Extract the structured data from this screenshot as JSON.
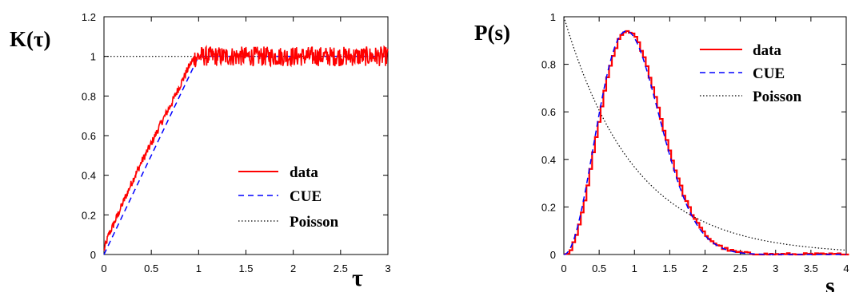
{
  "chart_data": [
    {
      "type": "line",
      "ylabel": "K(τ)",
      "xlabel": "τ",
      "xlim": [
        0,
        3
      ],
      "ylim": [
        0,
        1.2
      ],
      "xticks": [
        "0",
        "0.5",
        "1",
        "1.5",
        "2",
        "2.5",
        "3"
      ],
      "yticks": [
        "0",
        "0.2",
        "0.4",
        "0.6",
        "0.8",
        "1",
        "1.2"
      ],
      "grid": false,
      "legend_position": "bottom-right",
      "series": [
        {
          "name": "data",
          "color": "#ff0000",
          "style": "solid",
          "x": [
            0,
            0.05,
            0.1,
            0.2,
            0.3,
            0.4,
            0.5,
            0.6,
            0.7,
            0.8,
            0.9,
            0.95,
            1.0,
            3.0
          ],
          "y": [
            0.02,
            0.1,
            0.15,
            0.26,
            0.37,
            0.47,
            0.56,
            0.66,
            0.75,
            0.85,
            0.95,
            0.99,
            1.0,
            1.0
          ],
          "noise_after_x": 0.95,
          "noise_amplitude": 0.05
        },
        {
          "name": "CUE",
          "color": "#0000ff",
          "style": "dashed",
          "x": [
            0,
            1,
            3
          ],
          "y": [
            0,
            1,
            1
          ]
        },
        {
          "name": "Poisson",
          "color": "#000000",
          "style": "dotted",
          "x": [
            0,
            3
          ],
          "y": [
            1,
            1
          ]
        }
      ]
    },
    {
      "type": "line",
      "ylabel": "P(s)",
      "xlabel": "s",
      "xlim": [
        0,
        4
      ],
      "ylim": [
        0,
        1
      ],
      "xticks": [
        "0",
        "0.5",
        "1",
        "1.5",
        "2",
        "2.5",
        "3",
        "3.5",
        "4"
      ],
      "yticks": [
        "0",
        "0.2",
        "0.4",
        "0.6",
        "0.8",
        "1"
      ],
      "grid": false,
      "legend_position": "top-right",
      "series": [
        {
          "name": "data",
          "color": "#ff0000",
          "style": "solid",
          "function": "cue_wigner",
          "peak_x": 0.86,
          "peak_y": 0.94
        },
        {
          "name": "CUE",
          "color": "#0000ff",
          "style": "dashed",
          "function": "cue_wigner",
          "peak_x": 0.86,
          "peak_y": 0.94
        },
        {
          "name": "Poisson",
          "color": "#000000",
          "style": "dotted",
          "function": "exp_decay"
        }
      ]
    }
  ]
}
